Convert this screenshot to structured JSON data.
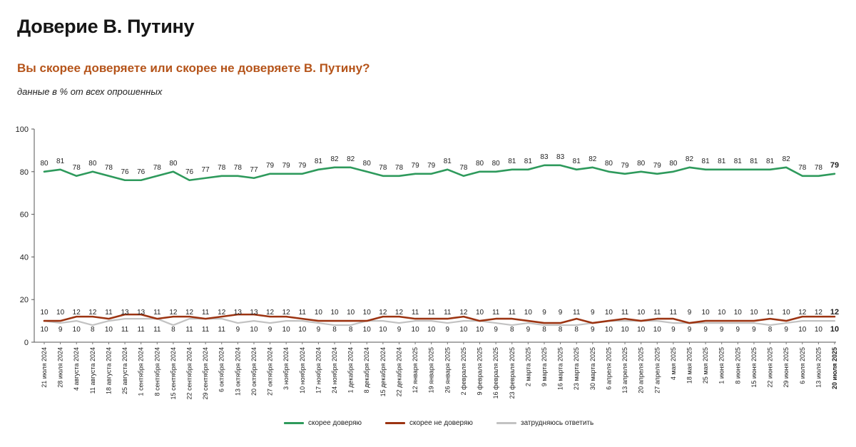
{
  "header": {
    "title": "Доверие В. Путину",
    "question": "Вы скорее доверяете или скорее не доверяете В. Путину?",
    "subtitle": "данные в % от всех опрошенных"
  },
  "chart_data": {
    "type": "line",
    "title": "Доверие В. Путину",
    "subtitle": "данные в % от всех опрошенных",
    "ylim": [
      0,
      100
    ],
    "yticks": [
      0,
      20,
      40,
      60,
      80,
      100
    ],
    "categories": [
      "21 июля 2024",
      "28 июля 2024",
      "4 августа 2024",
      "11 августа 2024",
      "18 августа 2024",
      "25 августа 2024",
      "1 сентября 2024",
      "8 сентября 2024",
      "15 сентября 2024",
      "22 сентября 2024",
      "29 сентября 2024",
      "6 октября 2024",
      "13 октября 2024",
      "20 октября 2024",
      "27 октября 2024",
      "3 ноября 2024",
      "10 ноября 2024",
      "17 ноября 2024",
      "24 ноября 2024",
      "1 декабря 2024",
      "8 декабря 2024",
      "15 декабря 2024",
      "22 декабря 2024",
      "12 января 2025",
      "19 января 2025",
      "26 января 2025",
      "2 февраля 2025",
      "9 февраля 2025",
      "16 февраля 2025",
      "23 февраля 2025",
      "2 марта 2025",
      "9 марта 2025",
      "16 марта 2025",
      "23 марта 2025",
      "30 марта 2025",
      "6 апреля 2025",
      "13 апреля 2025",
      "20 апреля 2025",
      "27 апреля 2025",
      "4 мая 2025",
      "18 мая 2025",
      "25 мая 2025",
      "1 июня 2025",
      "8 июня 2025",
      "15 июня 2025",
      "22 июня 2025",
      "29 июня 2025",
      "6 июля 2025",
      "13 июля 2025",
      "20 июля 2025"
    ],
    "series": [
      {
        "name": "скорее доверяю",
        "color": "#2e9a5c",
        "values": [
          80,
          81,
          78,
          80,
          78,
          76,
          76,
          78,
          80,
          76,
          77,
          78,
          78,
          77,
          79,
          79,
          79,
          81,
          82,
          82,
          80,
          78,
          78,
          79,
          79,
          81,
          78,
          80,
          80,
          81,
          81,
          83,
          83,
          81,
          82,
          80,
          79,
          80,
          79,
          80,
          82,
          81,
          81,
          81,
          81,
          81,
          82,
          78,
          78,
          79
        ]
      },
      {
        "name": "скорее не доверяю",
        "color": "#9c3412",
        "values": [
          10,
          10,
          12,
          12,
          11,
          13,
          13,
          11,
          12,
          12,
          11,
          12,
          13,
          13,
          12,
          12,
          11,
          10,
          10,
          10,
          10,
          12,
          12,
          11,
          11,
          11,
          12,
          10,
          11,
          11,
          10,
          9,
          9,
          11,
          9,
          10,
          11,
          10,
          11,
          11,
          9,
          10,
          10,
          10,
          10,
          11,
          10,
          12,
          12,
          12
        ]
      },
      {
        "name": "затрудняюсь ответить",
        "color": "#c2c2c2",
        "values": [
          10,
          9,
          10,
          8,
          10,
          11,
          11,
          11,
          8,
          11,
          11,
          11,
          9,
          10,
          9,
          10,
          10,
          9,
          8,
          8,
          10,
          10,
          9,
          10,
          10,
          9,
          10,
          10,
          9,
          8,
          9,
          8,
          8,
          8,
          9,
          10,
          10,
          10,
          10,
          9,
          9,
          9,
          9,
          9,
          9,
          8,
          9,
          10,
          10,
          10
        ]
      }
    ]
  }
}
